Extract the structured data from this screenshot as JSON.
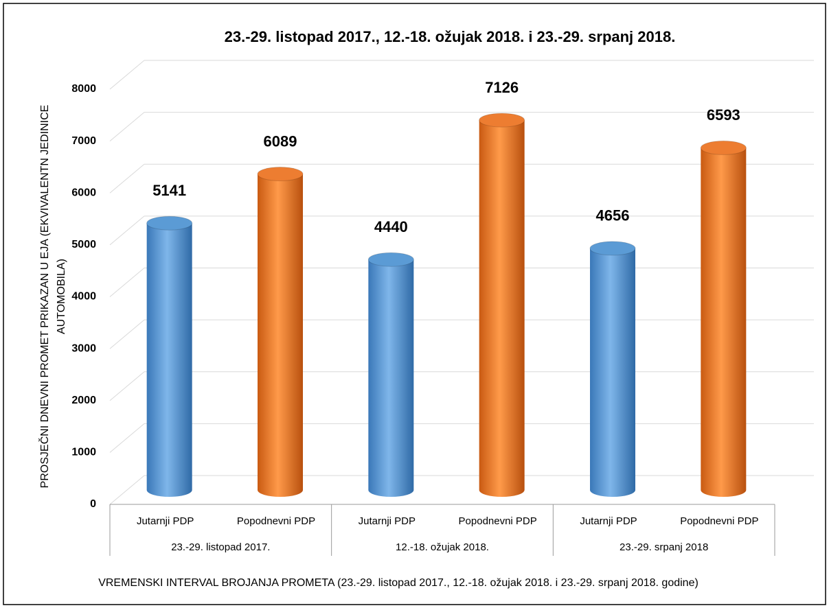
{
  "chart_data": {
    "type": "bar",
    "title": "23.-29. listopad 2017., 12.-18. ožujak 2018. i 23.-29. srpanj 2018.",
    "y_label": "PROSJEČNI DNEVNI PROMET PRIKAZAN U EJA (EKVIVALENTN JEDINICE AUTOMOBILA)",
    "x_label": "VREMENSKI INTERVAL BROJANJA PROMETA (23.-29. listopad 2017., 12.-18. ožujak 2018. i 23.-29. srpanj 2018. godine)",
    "groups": [
      {
        "name": "23.-29. listopad 2017.",
        "categories": [
          "Jutarnji PDP",
          "Popodnevni PDP"
        ],
        "values": [
          5141,
          6089
        ]
      },
      {
        "name": "12.-18. ožujak 2018.",
        "categories": [
          "Jutarnji PDP",
          "Popodnevni PDP"
        ],
        "values": [
          4440,
          7126
        ]
      },
      {
        "name": "23.-29. srpanj 2018",
        "categories": [
          "Jutarnji PDP",
          "Popodnevni PDP"
        ],
        "values": [
          4656,
          6593
        ]
      }
    ],
    "colors": [
      "#5b9bd5",
      "#ed7d31"
    ],
    "ylim": [
      0,
      8000
    ],
    "yticks": [
      0,
      1000,
      2000,
      3000,
      4000,
      5000,
      6000,
      7000,
      8000
    ],
    "grid": true
  }
}
